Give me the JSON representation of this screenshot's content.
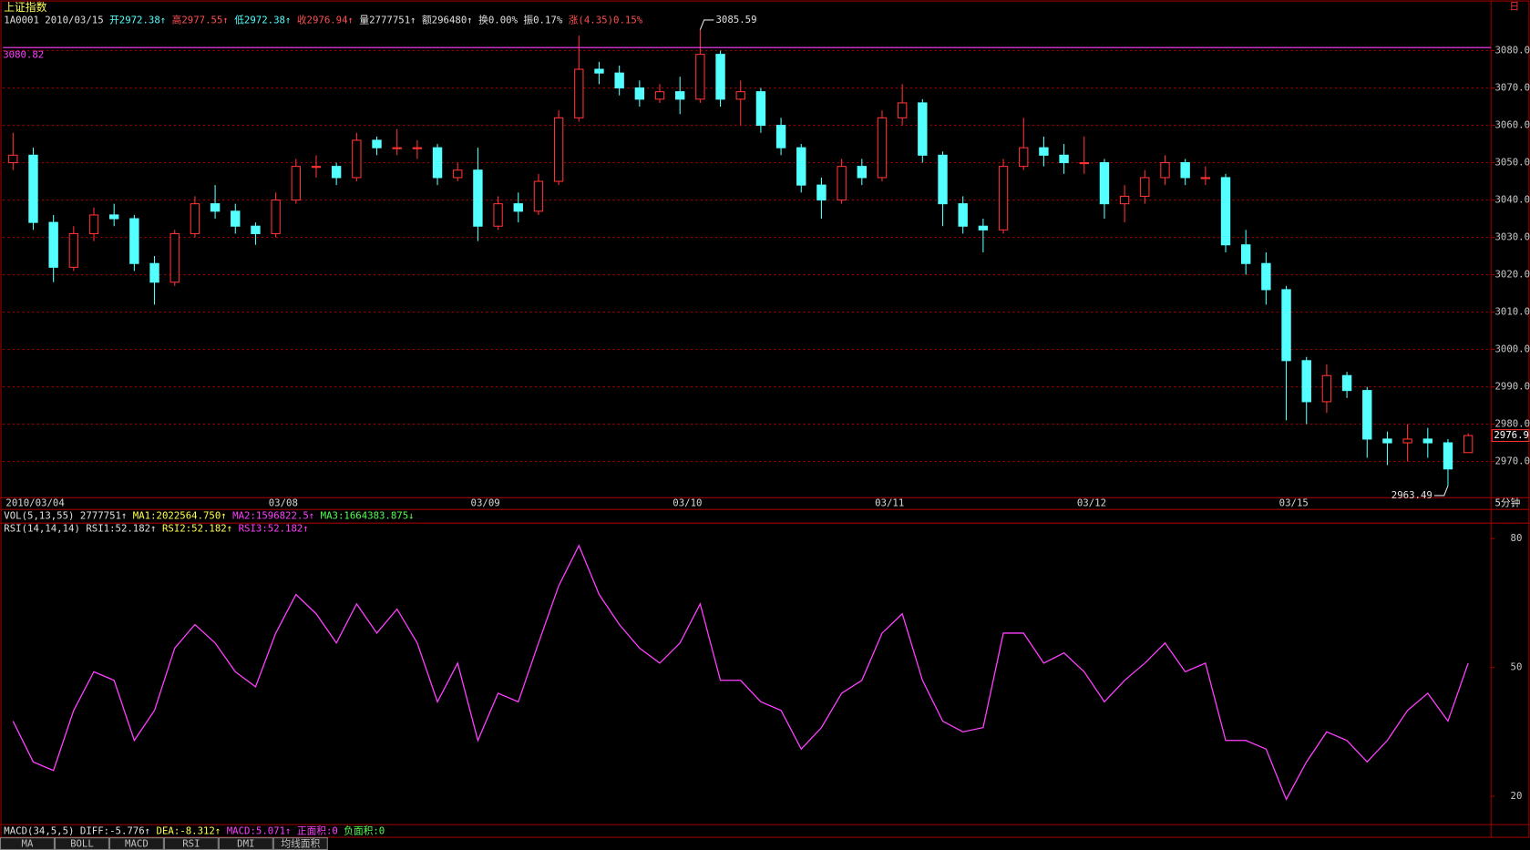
{
  "header": {
    "title": "上证指数",
    "corner": "日",
    "info": [
      {
        "text": "1A0001",
        "color": "#e0e0e0"
      },
      {
        "text": "2010/03/15",
        "color": "#e0e0e0"
      },
      {
        "text": "开2972.38↑",
        "color": "#54ffff"
      },
      {
        "text": "高2977.55↑",
        "color": "#ff5050"
      },
      {
        "text": "低2972.38↑",
        "color": "#54ffff"
      },
      {
        "text": "收2976.94↑",
        "color": "#ff5050"
      },
      {
        "text": "量2777751↑",
        "color": "#e0e0e0"
      },
      {
        "text": "额296480↑",
        "color": "#e0e0e0"
      },
      {
        "text": "换0.00%",
        "color": "#e0e0e0"
      },
      {
        "text": "振0.17%",
        "color": "#e0e0e0"
      },
      {
        "text": "涨(4.35)0.15%",
        "color": "#ff5050"
      }
    ]
  },
  "indicators": {
    "vol": [
      {
        "text": "VOL(5,13,55)",
        "color": "#e0e0e0"
      },
      {
        "text": "2777751↑",
        "color": "#e0e0e0"
      },
      {
        "text": "MA1:2022564.750↑",
        "color": "#ffff54"
      },
      {
        "text": "MA2:1596822.5↑",
        "color": "#ff40ff"
      },
      {
        "text": "MA3:1664383.875↓",
        "color": "#54ff54"
      }
    ],
    "rsi": [
      {
        "text": "RSI(14,14,14)",
        "color": "#e0e0e0"
      },
      {
        "text": "RSI1:52.182↑",
        "color": "#e0e0e0"
      },
      {
        "text": "RSI2:52.182↑",
        "color": "#ffff54"
      },
      {
        "text": "RSI3:52.182↑",
        "color": "#ff40ff"
      }
    ],
    "macd": [
      {
        "text": "MACD(34,5,5)",
        "color": "#e0e0e0"
      },
      {
        "text": "DIFF:-5.776↑",
        "color": "#e0e0e0"
      },
      {
        "text": "DEA:-8.312↑",
        "color": "#ffff54"
      },
      {
        "text": "MACD:5.071↑",
        "color": "#ff40ff"
      },
      {
        "text": "正面积:0",
        "color": "#ff40ff"
      },
      {
        "text": "负面积:0",
        "color": "#54ff54"
      }
    ]
  },
  "tabs": [
    "MA",
    "BOLL",
    "MACD",
    "RSI",
    "DMI",
    "均线面积"
  ],
  "chart_data": [
    {
      "type": "candlestick",
      "period": "5分钟",
      "categories": [
        "2010/03/04",
        null,
        null,
        null,
        null,
        null,
        null,
        null,
        null,
        null,
        null,
        null,
        null,
        "03/08",
        null,
        null,
        null,
        null,
        null,
        null,
        null,
        null,
        null,
        "03/09",
        null,
        null,
        null,
        null,
        null,
        null,
        null,
        null,
        null,
        "03/10",
        null,
        null,
        null,
        null,
        null,
        null,
        null,
        null,
        null,
        "03/11",
        null,
        null,
        null,
        null,
        null,
        null,
        null,
        null,
        null,
        "03/12",
        null,
        null,
        null,
        null,
        null,
        null,
        null,
        null,
        null,
        "03/15",
        null,
        null,
        null,
        null,
        null,
        null,
        null,
        null,
        null
      ],
      "open": [
        3050,
        3052,
        3034,
        3022,
        3031,
        3036,
        3035,
        3023,
        3018,
        3031,
        3039,
        3037,
        3033,
        3031,
        3040,
        3049,
        3049,
        3046,
        3056,
        3054,
        3054,
        3054,
        3046,
        3048,
        3033,
        3039,
        3037,
        3045,
        3062,
        3075,
        3074,
        3070,
        3067,
        3069,
        3067,
        3079,
        3067,
        3069,
        3060,
        3054,
        3044,
        3040,
        3049,
        3046,
        3062,
        3066,
        3052,
        3039,
        3033,
        3032,
        3049,
        3054,
        3052,
        3050,
        3050,
        3039,
        3041,
        3046,
        3050,
        3046,
        3046,
        3028,
        3023,
        3016,
        2997,
        2986,
        2993,
        2989,
        2976,
        2975,
        2976,
        2975,
        2972.38
      ],
      "high": [
        3058,
        3054,
        3036,
        3033,
        3038,
        3039,
        3036,
        3025,
        3032,
        3041,
        3044,
        3039,
        3034,
        3042,
        3051,
        3052,
        3050,
        3058,
        3057,
        3059,
        3056,
        3055,
        3050,
        3054,
        3041,
        3042,
        3047,
        3064,
        3084,
        3077,
        3076,
        3072,
        3071,
        3073,
        3085.59,
        3080,
        3072,
        3070,
        3062,
        3055,
        3046,
        3051,
        3051,
        3064,
        3071,
        3067,
        3053,
        3041,
        3035,
        3051,
        3062,
        3057,
        3055,
        3057,
        3051,
        3044,
        3048,
        3052,
        3051,
        3049,
        3047,
        3032,
        3026,
        3017,
        2998,
        2996,
        2994,
        2990,
        2978,
        2980,
        2979,
        2976,
        2977.55
      ],
      "low": [
        3048,
        3032,
        3018,
        3021,
        3029,
        3033,
        3021,
        3012,
        3017,
        3030,
        3035,
        3031,
        3028,
        3030,
        3039,
        3046,
        3044,
        3045,
        3052,
        3052,
        3051,
        3044,
        3045,
        3029,
        3032,
        3034,
        3036,
        3044,
        3061,
        3071,
        3068,
        3065,
        3066,
        3063,
        3066,
        3065,
        3060,
        3058,
        3052,
        3042,
        3035,
        3039,
        3044,
        3045,
        3060,
        3050,
        3033,
        3031,
        3026,
        3031,
        3048,
        3049,
        3047,
        3047,
        3035,
        3034,
        3039,
        3044,
        3044,
        3044,
        3026,
        3020,
        3012,
        2981,
        2980,
        2983,
        2987,
        2971,
        2969,
        2970,
        2971,
        2963.49,
        2972.38
      ],
      "close": [
        3052,
        3034,
        3022,
        3031,
        3036,
        3035,
        3023,
        3018,
        3031,
        3039,
        3037,
        3033,
        3031,
        3040,
        3049,
        3049,
        3046,
        3056,
        3054,
        3054,
        3054,
        3046,
        3048,
        3033,
        3039,
        3037,
        3045,
        3062,
        3075,
        3074,
        3070,
        3067,
        3069,
        3067,
        3079,
        3067,
        3069,
        3060,
        3054,
        3044,
        3040,
        3049,
        3046,
        3062,
        3066,
        3052,
        3039,
        3033,
        3032,
        3049,
        3054,
        3052,
        3050,
        3050,
        3039,
        3041,
        3046,
        3050,
        3046,
        3046,
        3028,
        3023,
        3016,
        2997,
        2986,
        2993,
        2989,
        2976,
        2975,
        2976,
        2975,
        2968,
        2976.94
      ],
      "up_color": "#ff3232",
      "down_color": "#54ffff",
      "ylim": [
        2960.3,
        3087.8
      ],
      "yticks": [
        {
          "value": 2970,
          "label": "2970.0"
        },
        {
          "value": 2980,
          "label": "2980.0"
        },
        {
          "value": 2990,
          "label": "2990.0"
        },
        {
          "value": 3000,
          "label": "3000.0"
        },
        {
          "value": 3010,
          "label": "3010.0"
        },
        {
          "value": 3020,
          "label": "3020.0"
        },
        {
          "value": 3030,
          "label": "3030.0"
        },
        {
          "value": 3040,
          "label": "3040.0"
        },
        {
          "value": 3050,
          "label": "3050.0"
        },
        {
          "value": 3060,
          "label": "3060.0"
        },
        {
          "value": 3070,
          "label": "3070.0"
        },
        {
          "value": 3080,
          "label": "3080.0"
        }
      ],
      "grid": true,
      "grid_color": "#a00000",
      "annotations": [
        {
          "type": "line",
          "value": 3080.82,
          "label": "3080.82",
          "color": "#ff40ff"
        },
        {
          "type": "high",
          "value": 3085.59,
          "label": "3085.59",
          "color": "#e0e0e0"
        },
        {
          "type": "low",
          "value": 2963.49,
          "label": "2963.49",
          "color": "#e0e0e0"
        },
        {
          "type": "last",
          "value": 2976.94,
          "label": "2976.9",
          "color": "#ff3232"
        }
      ]
    },
    {
      "type": "line",
      "color": "#ff40ff",
      "values": [
        37.5,
        28,
        26,
        40,
        49,
        47,
        33,
        40,
        54.5,
        60,
        55.7,
        49,
        45.5,
        58,
        67,
        62.5,
        55.7,
        64.8,
        58,
        63.6,
        55.7,
        42,
        51,
        33,
        44,
        42,
        55.7,
        69,
        78.4,
        67,
        60,
        54.5,
        51,
        55.7,
        64.8,
        47,
        47,
        42,
        40,
        31,
        36,
        44,
        47,
        58,
        62.5,
        47,
        37.5,
        35,
        36,
        58,
        58,
        51,
        53.4,
        49,
        42,
        47,
        51,
        55.7,
        49,
        51,
        33,
        33,
        31,
        19.3,
        28,
        35,
        33,
        28,
        33,
        40,
        44,
        37.5,
        51
      ],
      "ylim": [
        13.4,
        83.4
      ],
      "yticks": [
        20,
        50,
        80
      ],
      "grid": false
    }
  ]
}
